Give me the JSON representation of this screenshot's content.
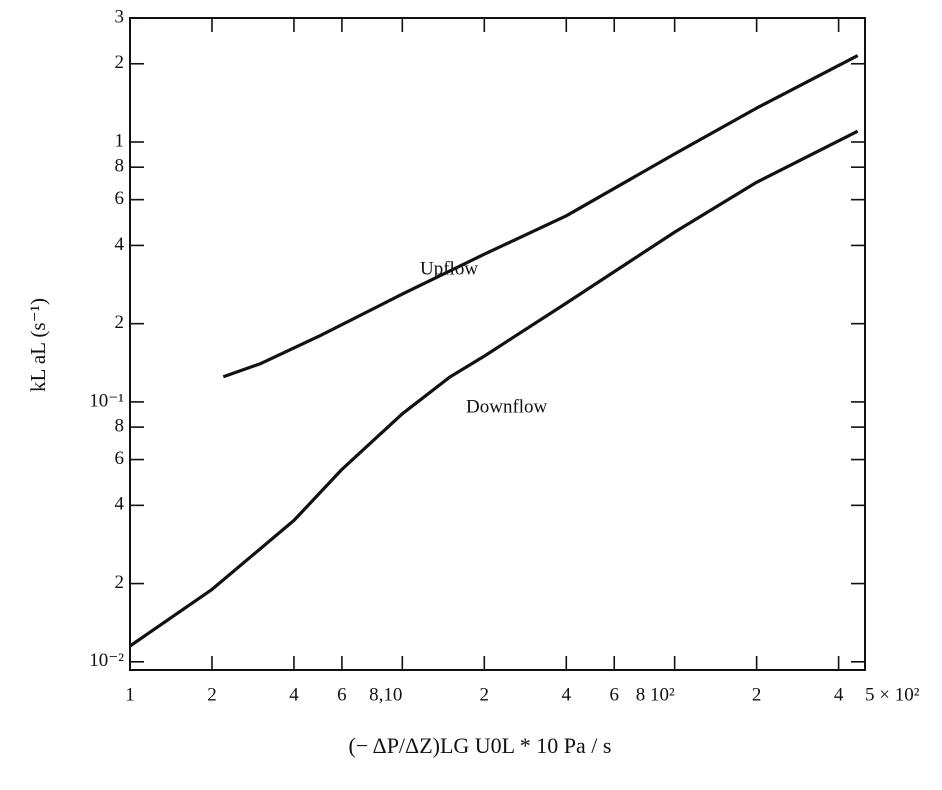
{
  "chart_data": {
    "type": "line",
    "xlog": true,
    "ylog": true,
    "xlabel": "(− ΔP/ΔZ)LG U0L   * 10 Pa / s",
    "ylabel": "kL aL (s⁻¹)",
    "xlim": [
      1,
      500
    ],
    "ylim": [
      0.0093,
      3
    ],
    "xticks": [
      1,
      2,
      4,
      6,
      {
        "value": 10,
        "label": "8,10"
      },
      {
        "value": 20,
        "label": "2"
      },
      {
        "value": 40,
        "label": "4"
      },
      {
        "value": 60,
        "label": "6"
      },
      {
        "value": 100,
        "label": "8 10²"
      },
      {
        "value": 200,
        "label": "2"
      },
      {
        "value": 400,
        "label": "4"
      },
      {
        "value": 500,
        "label": "5 × 10²"
      }
    ],
    "yticks": [
      {
        "value": 0.01,
        "label": "10⁻²"
      },
      {
        "value": 0.02,
        "label": "2"
      },
      {
        "value": 0.04,
        "label": "4"
      },
      {
        "value": 0.06,
        "label": "6"
      },
      {
        "value": 0.08,
        "label": "8"
      },
      {
        "value": 0.1,
        "label": "10⁻¹"
      },
      {
        "value": 0.2,
        "label": "2"
      },
      {
        "value": 0.4,
        "label": "4"
      },
      {
        "value": 0.6,
        "label": "6"
      },
      {
        "value": 0.8,
        "label": "8"
      },
      1,
      2,
      3
    ],
    "annotations": [
      "Upflow",
      "Downflow"
    ],
    "series": [
      {
        "name": "Upflow",
        "color": "#111111",
        "x": [
          2.2,
          3,
          5,
          10,
          20,
          40,
          100,
          200,
          470
        ],
        "values": [
          0.125,
          0.14,
          0.18,
          0.26,
          0.37,
          0.52,
          0.9,
          1.35,
          2.15
        ]
      },
      {
        "name": "Downflow",
        "color": "#111111",
        "x": [
          1,
          2,
          4,
          6,
          10,
          15,
          20,
          40,
          100,
          200,
          470
        ],
        "values": [
          0.0115,
          0.019,
          0.035,
          0.055,
          0.09,
          0.125,
          0.15,
          0.24,
          0.45,
          0.7,
          1.1
        ]
      }
    ]
  }
}
